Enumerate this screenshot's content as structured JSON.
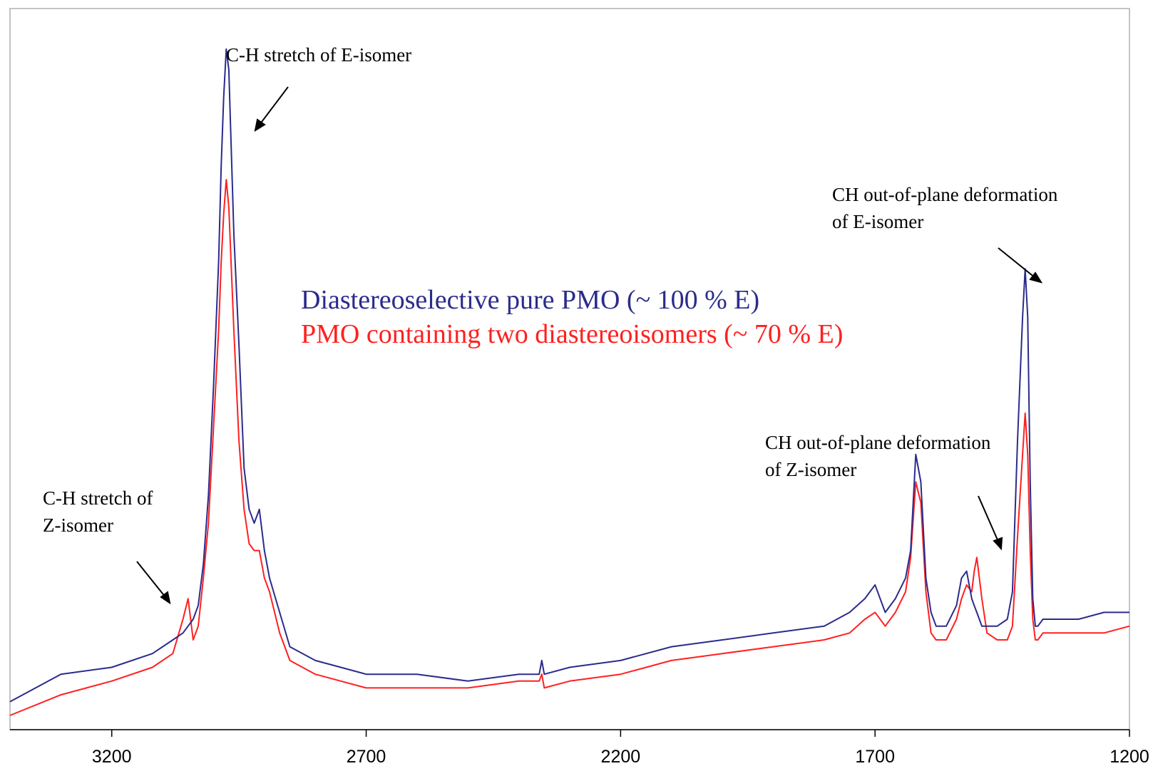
{
  "chart_data": {
    "type": "line",
    "title": "",
    "xlabel": "",
    "ylabel": "",
    "xlim": [
      3400,
      1200
    ],
    "x_reversed": true,
    "ylim": [
      0,
      100
    ],
    "grid": false,
    "legend_position": "center",
    "x_ticks": [
      3200,
      2700,
      2200,
      1700,
      1200
    ],
    "series": [
      {
        "name": "Diastereoselective pure PMO (~ 100 % E)",
        "color": "#2b2b8c",
        "x": [
          3400,
          3300,
          3200,
          3120,
          3080,
          3060,
          3050,
          3040,
          3030,
          3020,
          3010,
          3000,
          2990,
          2985,
          2980,
          2975,
          2970,
          2960,
          2950,
          2940,
          2930,
          2920,
          2910,
          2900,
          2890,
          2870,
          2850,
          2800,
          2750,
          2700,
          2600,
          2500,
          2400,
          2360,
          2355,
          2350,
          2300,
          2200,
          2100,
          2000,
          1900,
          1800,
          1750,
          1720,
          1700,
          1680,
          1660,
          1640,
          1630,
          1620,
          1610,
          1600,
          1590,
          1580,
          1560,
          1540,
          1530,
          1520,
          1510,
          1505,
          1500,
          1490,
          1480,
          1460,
          1440,
          1430,
          1420,
          1410,
          1405,
          1400,
          1395,
          1390,
          1385,
          1380,
          1370,
          1350,
          1300,
          1250,
          1200
        ],
        "y": [
          2,
          6,
          7,
          9,
          11,
          12,
          13,
          14,
          16,
          22,
          32,
          48,
          66,
          80,
          90,
          97,
          94,
          70,
          54,
          36,
          30,
          28,
          30,
          24,
          20,
          15,
          10,
          8,
          7,
          6,
          6,
          5,
          6,
          6,
          8,
          6,
          7,
          8,
          10,
          11,
          12,
          13,
          15,
          17,
          19,
          15,
          17,
          20,
          24,
          38,
          34,
          20,
          15,
          13,
          13,
          16,
          20,
          21,
          17,
          16,
          15,
          13,
          13,
          13,
          14,
          18,
          40,
          58,
          65,
          58,
          34,
          17,
          13,
          13,
          14,
          14,
          14,
          15,
          15
        ]
      },
      {
        "name": "PMO containing two diastereoisomers (~ 70 % E)",
        "color": "#ff2020",
        "x": [
          3400,
          3300,
          3200,
          3120,
          3080,
          3060,
          3050,
          3040,
          3030,
          3020,
          3010,
          3000,
          2990,
          2985,
          2980,
          2975,
          2970,
          2960,
          2950,
          2940,
          2930,
          2920,
          2910,
          2900,
          2890,
          2870,
          2850,
          2800,
          2750,
          2700,
          2600,
          2500,
          2400,
          2360,
          2355,
          2350,
          2300,
          2200,
          2100,
          2000,
          1900,
          1800,
          1750,
          1720,
          1700,
          1680,
          1660,
          1640,
          1630,
          1620,
          1610,
          1600,
          1590,
          1580,
          1560,
          1540,
          1530,
          1520,
          1510,
          1505,
          1500,
          1490,
          1480,
          1460,
          1440,
          1430,
          1420,
          1410,
          1405,
          1400,
          1395,
          1390,
          1385,
          1380,
          1370,
          1350,
          1300,
          1250,
          1200
        ],
        "y": [
          0,
          3,
          5,
          7,
          9,
          14,
          17,
          11,
          13,
          20,
          28,
          42,
          56,
          66,
          73,
          78,
          74,
          56,
          40,
          30,
          25,
          24,
          24,
          20,
          18,
          12,
          8,
          6,
          5,
          4,
          4,
          4,
          5,
          5,
          6,
          4,
          5,
          6,
          8,
          9,
          10,
          11,
          12,
          14,
          15,
          13,
          15,
          18,
          23,
          34,
          31,
          18,
          12,
          11,
          11,
          14,
          17,
          19,
          18,
          21,
          23,
          17,
          12,
          11,
          11,
          13,
          26,
          38,
          44,
          38,
          24,
          14,
          11,
          11,
          12,
          12,
          12,
          12,
          13
        ]
      }
    ],
    "annotations": [
      {
        "lines": [
          "C-H stretch of E-isomer"
        ]
      },
      {
        "lines": [
          "C-H stretch of",
          "Z-isomer"
        ]
      },
      {
        "lines": [
          "CH out-of-plane deformation",
          "of E-isomer"
        ]
      },
      {
        "lines": [
          "CH out-of-plane deformation",
          "of Z-isomer"
        ]
      }
    ]
  }
}
